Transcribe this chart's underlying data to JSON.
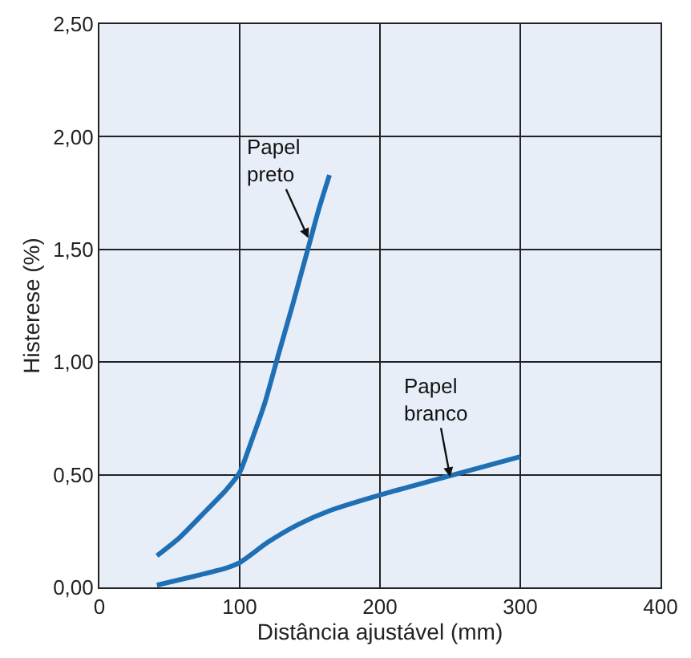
{
  "chart_data": {
    "type": "line",
    "xlabel": "Distância ajustável (mm)",
    "ylabel": "Histerese (%)",
    "xlim": [
      0,
      400
    ],
    "xticks": [
      0,
      100,
      200,
      300,
      400
    ],
    "ylim": [
      0,
      2.5
    ],
    "yticks": [
      {
        "value": 0,
        "label": "0,00"
      },
      {
        "value": 0.5,
        "label": "0,50"
      },
      {
        "value": 1,
        "label": "1,00"
      },
      {
        "value": 1.5,
        "label": "1,50"
      },
      {
        "value": 2,
        "label": "2,00"
      },
      {
        "value": 2.5,
        "label": "2,50"
      }
    ],
    "grid": true,
    "marker": "none",
    "line_style": "solid",
    "series": [
      {
        "color": "#1f6fb5",
        "x": [
          41,
          57,
          76,
          90,
          100,
          109,
          118,
          127,
          138,
          149,
          156,
          164
        ],
        "values": [
          0.14,
          0.22,
          0.34,
          0.43,
          0.51,
          0.66,
          0.82,
          1.02,
          1.26,
          1.51,
          1.67,
          1.83
        ]
      },
      {
        "color": "#1f6fb5",
        "x": [
          41,
          68,
          90,
          100,
          120,
          142,
          164,
          200,
          241,
          300
        ],
        "values": [
          0.01,
          0.05,
          0.085,
          0.11,
          0.2,
          0.28,
          0.34,
          0.41,
          0.48,
          0.58
        ]
      }
    ],
    "annotations": [
      {
        "text": "Papel\npreto",
        "x": 149,
        "y": 1.55
      },
      {
        "text": "Papel\nbranco",
        "x": 250,
        "y": 0.49
      }
    ]
  }
}
